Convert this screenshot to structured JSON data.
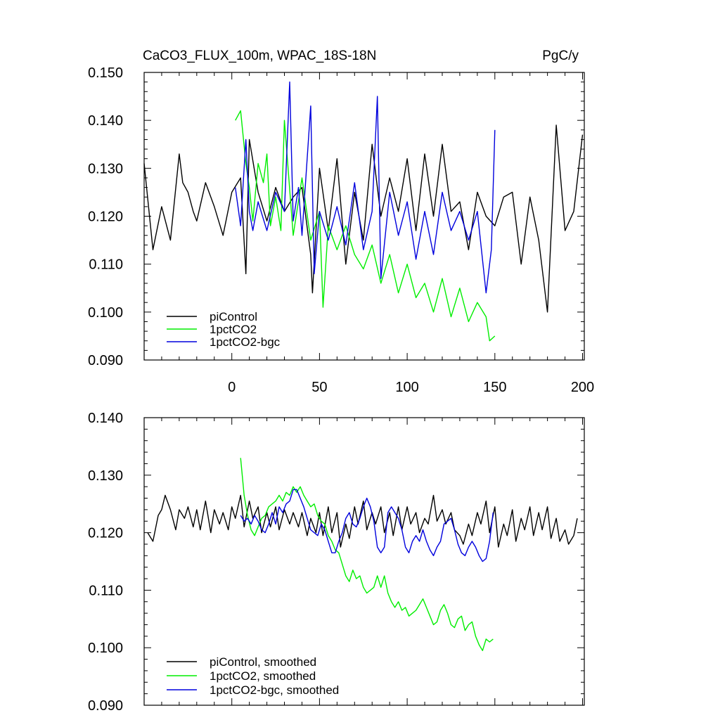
{
  "chart_data": [
    {
      "type": "line",
      "title": "CaCO3_FLUX_100m, WPAC_18S-18N",
      "units": "PgC/y",
      "xlabel": "",
      "ylabel": "",
      "xlim": [
        -50,
        201
      ],
      "ylim": [
        0.09,
        0.15
      ],
      "xticks": [
        0,
        50,
        100,
        150,
        200
      ],
      "xtick_labels": [
        "0",
        "50",
        "100",
        "150",
        "200"
      ],
      "yticks": [
        0.09,
        0.1,
        0.11,
        0.12,
        0.13,
        0.14,
        0.15
      ],
      "ytick_labels": [
        "0.090",
        "0.100",
        "0.110",
        "0.120",
        "0.130",
        "0.140",
        "0.150"
      ],
      "legend_position": "bottom-left",
      "series": [
        {
          "name": "piControl",
          "color": "#000000",
          "x": [
            -50,
            -45,
            -40,
            -35,
            -30,
            -28,
            -25,
            -22,
            -20,
            -15,
            -10,
            -5,
            0,
            5,
            8,
            10,
            15,
            20,
            25,
            30,
            35,
            40,
            45,
            46,
            50,
            55,
            60,
            65,
            70,
            75,
            80,
            85,
            90,
            95,
            100,
            105,
            110,
            115,
            120,
            125,
            130,
            135,
            140,
            145,
            150,
            155,
            160,
            165,
            170,
            175,
            180,
            185,
            190,
            195,
            200
          ],
          "values": [
            0.131,
            0.113,
            0.122,
            0.115,
            0.133,
            0.127,
            0.125,
            0.121,
            0.119,
            0.127,
            0.122,
            0.116,
            0.125,
            0.128,
            0.108,
            0.136,
            0.125,
            0.119,
            0.126,
            0.121,
            0.124,
            0.126,
            0.112,
            0.104,
            0.13,
            0.117,
            0.132,
            0.11,
            0.125,
            0.115,
            0.135,
            0.12,
            0.128,
            0.121,
            0.132,
            0.117,
            0.133,
            0.12,
            0.135,
            0.121,
            0.123,
            0.113,
            0.125,
            0.12,
            0.118,
            0.124,
            0.125,
            0.11,
            0.124,
            0.115,
            0.1,
            0.139,
            0.117,
            0.121,
            0.137
          ]
        },
        {
          "name": "1pctCO2",
          "color": "#00ee00",
          "x": [
            2,
            5,
            8,
            10,
            12,
            15,
            18,
            20,
            22,
            25,
            28,
            30,
            35,
            40,
            45,
            50,
            52,
            55,
            60,
            65,
            70,
            75,
            80,
            85,
            90,
            95,
            100,
            105,
            110,
            115,
            120,
            125,
            130,
            135,
            140,
            145,
            147,
            150
          ],
          "values": [
            0.14,
            0.142,
            0.131,
            0.126,
            0.119,
            0.131,
            0.127,
            0.133,
            0.118,
            0.124,
            0.117,
            0.14,
            0.116,
            0.128,
            0.115,
            0.121,
            0.101,
            0.118,
            0.113,
            0.118,
            0.112,
            0.109,
            0.114,
            0.106,
            0.112,
            0.104,
            0.11,
            0.103,
            0.106,
            0.1,
            0.107,
            0.099,
            0.105,
            0.098,
            0.102,
            0.099,
            0.094,
            0.095
          ]
        },
        {
          "name": "1pctCO2-bgc",
          "color": "#0000dd",
          "x": [
            2,
            5,
            8,
            10,
            12,
            15,
            20,
            25,
            30,
            33,
            35,
            38,
            40,
            45,
            47,
            50,
            55,
            60,
            65,
            70,
            75,
            80,
            83,
            85,
            90,
            95,
            100,
            105,
            110,
            115,
            120,
            125,
            130,
            135,
            140,
            145,
            148,
            150
          ],
          "values": [
            0.126,
            0.118,
            0.136,
            0.121,
            0.117,
            0.123,
            0.117,
            0.125,
            0.121,
            0.148,
            0.119,
            0.126,
            0.116,
            0.143,
            0.108,
            0.121,
            0.115,
            0.122,
            0.114,
            0.127,
            0.113,
            0.121,
            0.145,
            0.107,
            0.125,
            0.116,
            0.123,
            0.111,
            0.121,
            0.112,
            0.125,
            0.117,
            0.121,
            0.115,
            0.121,
            0.104,
            0.113,
            0.138
          ]
        }
      ]
    },
    {
      "type": "line",
      "title": "",
      "xlabel": "",
      "ylabel": "",
      "xlim": [
        -50,
        201
      ],
      "ylim": [
        0.09,
        0.14
      ],
      "yticks": [
        0.09,
        0.1,
        0.11,
        0.12,
        0.13,
        0.14
      ],
      "ytick_labels": [
        "0.090",
        "0.100",
        "0.110",
        "0.120",
        "0.130",
        "0.140"
      ],
      "legend_position": "bottom-left",
      "series": [
        {
          "name": "piControl, smoothed",
          "color": "#000000",
          "x": [
            -48,
            -45,
            -42,
            -40,
            -38,
            -35,
            -32,
            -30,
            -27,
            -25,
            -22,
            -20,
            -18,
            -15,
            -12,
            -10,
            -7,
            -5,
            -2,
            0,
            2,
            5,
            7,
            10,
            12,
            15,
            17,
            20,
            22,
            25,
            27,
            30,
            33,
            35,
            38,
            40,
            43,
            45,
            48,
            50,
            52,
            55,
            57,
            60,
            62,
            65,
            67,
            70,
            72,
            75,
            77,
            80,
            82,
            85,
            87,
            90,
            92,
            95,
            97,
            100,
            102,
            105,
            107,
            110,
            112,
            115,
            117,
            120,
            122,
            125,
            127,
            130,
            132,
            135,
            137,
            140,
            142,
            145,
            147,
            150,
            152,
            155,
            157,
            160,
            162,
            165,
            167,
            170,
            172,
            175,
            177,
            180,
            182,
            185,
            187,
            190,
            192,
            195,
            197
          ],
          "values": [
            0.12,
            0.1185,
            0.123,
            0.124,
            0.1265,
            0.124,
            0.1205,
            0.124,
            0.1225,
            0.1245,
            0.121,
            0.124,
            0.1205,
            0.1255,
            0.12,
            0.124,
            0.1215,
            0.1235,
            0.1205,
            0.1245,
            0.1225,
            0.1265,
            0.121,
            0.1255,
            0.1225,
            0.1245,
            0.12,
            0.1235,
            0.121,
            0.1245,
            0.1205,
            0.124,
            0.1215,
            0.1235,
            0.121,
            0.1235,
            0.1195,
            0.1225,
            0.12,
            0.1235,
            0.1195,
            0.1245,
            0.12,
            0.1235,
            0.1175,
            0.1215,
            0.119,
            0.1245,
            0.1215,
            0.1255,
            0.1205,
            0.1235,
            0.1215,
            0.1245,
            0.12,
            0.1235,
            0.1195,
            0.1245,
            0.1205,
            0.1245,
            0.1215,
            0.1235,
            0.12,
            0.1225,
            0.1215,
            0.1265,
            0.122,
            0.124,
            0.1215,
            0.1235,
            0.1205,
            0.1195,
            0.118,
            0.1215,
            0.1195,
            0.1235,
            0.1215,
            0.1255,
            0.12,
            0.1245,
            0.1175,
            0.1215,
            0.1195,
            0.124,
            0.1185,
            0.1225,
            0.1205,
            0.1245,
            0.1195,
            0.1235,
            0.1205,
            0.1245,
            0.119,
            0.1225,
            0.1185,
            0.1205,
            0.118,
            0.1195,
            0.1225
          ]
        },
        {
          "name": "1pctCO2, smoothed",
          "color": "#00ee00",
          "x": [
            5,
            7,
            9,
            11,
            13,
            15,
            17,
            19,
            21,
            23,
            25,
            27,
            29,
            31,
            33,
            35,
            37,
            39,
            41,
            43,
            45,
            47,
            49,
            51,
            53,
            55,
            57,
            59,
            61,
            63,
            65,
            67,
            69,
            71,
            73,
            75,
            77,
            79,
            81,
            83,
            85,
            87,
            89,
            91,
            93,
            95,
            97,
            99,
            101,
            103,
            105,
            107,
            109,
            111,
            113,
            115,
            117,
            119,
            121,
            123,
            125,
            127,
            129,
            131,
            133,
            135,
            137,
            139,
            141,
            143,
            145,
            147,
            149
          ],
          "values": [
            0.133,
            0.1265,
            0.123,
            0.1205,
            0.1195,
            0.121,
            0.1225,
            0.123,
            0.1245,
            0.125,
            0.1255,
            0.1265,
            0.1255,
            0.127,
            0.1265,
            0.128,
            0.127,
            0.128,
            0.1265,
            0.1255,
            0.1245,
            0.125,
            0.123,
            0.122,
            0.1215,
            0.1195,
            0.1185,
            0.117,
            0.1165,
            0.1145,
            0.1125,
            0.1115,
            0.1135,
            0.112,
            0.1125,
            0.1105,
            0.1095,
            0.11,
            0.1105,
            0.1125,
            0.1105,
            0.1125,
            0.1095,
            0.108,
            0.107,
            0.108,
            0.1065,
            0.107,
            0.1055,
            0.106,
            0.1065,
            0.1075,
            0.1085,
            0.107,
            0.1055,
            0.104,
            0.1045,
            0.1065,
            0.1075,
            0.106,
            0.104,
            0.1035,
            0.105,
            0.1055,
            0.103,
            0.104,
            0.1045,
            0.102,
            0.1005,
            0.0995,
            0.1015,
            0.101,
            0.1015
          ]
        },
        {
          "name": "1pctCO2-bgc, smoothed",
          "color": "#0000dd",
          "x": [
            5,
            7,
            9,
            11,
            13,
            15,
            17,
            19,
            21,
            23,
            25,
            27,
            29,
            31,
            33,
            35,
            37,
            39,
            41,
            43,
            45,
            47,
            49,
            51,
            53,
            55,
            57,
            59,
            61,
            63,
            65,
            67,
            69,
            71,
            73,
            75,
            77,
            79,
            81,
            83,
            85,
            87,
            89,
            91,
            93,
            95,
            97,
            99,
            101,
            103,
            105,
            107,
            109,
            111,
            113,
            115,
            117,
            119,
            121,
            123,
            125,
            127,
            129,
            131,
            133,
            135,
            137,
            139,
            141,
            143,
            145,
            147,
            149
          ],
          "values": [
            0.123,
            0.122,
            0.1225,
            0.1215,
            0.123,
            0.122,
            0.1205,
            0.12,
            0.1215,
            0.1235,
            0.1215,
            0.1245,
            0.1235,
            0.125,
            0.1255,
            0.1275,
            0.1275,
            0.126,
            0.1245,
            0.1225,
            0.1205,
            0.12,
            0.1195,
            0.1215,
            0.1205,
            0.1185,
            0.1165,
            0.1165,
            0.1185,
            0.12,
            0.1225,
            0.1235,
            0.1215,
            0.121,
            0.1225,
            0.1245,
            0.126,
            0.1245,
            0.122,
            0.1175,
            0.1165,
            0.1175,
            0.1235,
            0.1245,
            0.1235,
            0.1225,
            0.1205,
            0.1175,
            0.1165,
            0.1185,
            0.1195,
            0.1185,
            0.1205,
            0.1185,
            0.117,
            0.116,
            0.1175,
            0.1185,
            0.1215,
            0.122,
            0.1225,
            0.1205,
            0.118,
            0.1165,
            0.116,
            0.1175,
            0.1185,
            0.1175,
            0.116,
            0.115,
            0.1155,
            0.1185,
            0.1235
          ]
        }
      ]
    }
  ]
}
